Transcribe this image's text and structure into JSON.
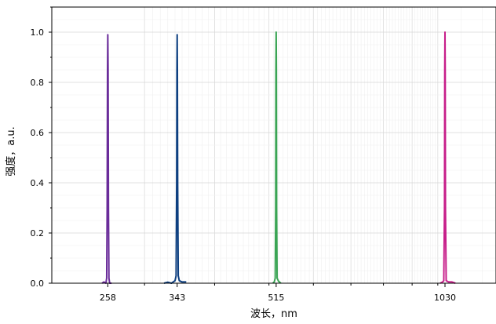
{
  "chart_data": {
    "type": "line",
    "xlabel": "波长，nm",
    "ylabel": "强度，a.u.",
    "x_scale": "log",
    "xlim": [
      205,
      1270
    ],
    "ylim": [
      0,
      1.1
    ],
    "x_ticks": [
      258,
      343,
      515,
      1030
    ],
    "y_ticks": [
      0.0,
      0.2,
      0.4,
      0.6,
      0.8,
      1.0
    ],
    "y_tick_labels": [
      "0.0",
      "0.2",
      "0.4",
      "0.6",
      "0.8",
      "1.0"
    ],
    "grid": true,
    "series": [
      {
        "color": "#6a2c9a",
        "x": [
          252,
          254,
          256,
          256.8,
          257.3,
          257.7,
          258.0,
          258.3,
          258.7,
          259.2,
          260,
          262
        ],
        "values": [
          0.0,
          0.005,
          0.0,
          0.02,
          0.3,
          0.85,
          0.99,
          0.85,
          0.3,
          0.02,
          0.0,
          0.0
        ]
      },
      {
        "color": "#0d3f80",
        "x": [
          325,
          330,
          335,
          338,
          340,
          341.5,
          342.3,
          342.7,
          343.0,
          343.3,
          343.7,
          344.5,
          346,
          350,
          356
        ],
        "values": [
          0.0,
          0.004,
          0.0,
          0.006,
          0.01,
          0.03,
          0.4,
          0.85,
          0.99,
          0.85,
          0.4,
          0.03,
          0.01,
          0.005,
          0.005
        ]
      },
      {
        "color": "#3aa454",
        "x": [
          508,
          511,
          513,
          514,
          514.5,
          515.0,
          515.5,
          516,
          517,
          520,
          525
        ],
        "values": [
          0.0,
          0.005,
          0.02,
          0.3,
          0.85,
          1.0,
          0.85,
          0.3,
          0.02,
          0.008,
          0.0
        ]
      },
      {
        "color": "#c71e8a",
        "x": [
          1010,
          1020,
          1025,
          1028,
          1029,
          1030.0,
          1031,
          1032,
          1035,
          1045,
          1060,
          1075
        ],
        "values": [
          0.0,
          0.005,
          0.01,
          0.3,
          0.85,
          1.0,
          0.85,
          0.3,
          0.01,
          0.005,
          0.005,
          0.0
        ]
      }
    ]
  }
}
